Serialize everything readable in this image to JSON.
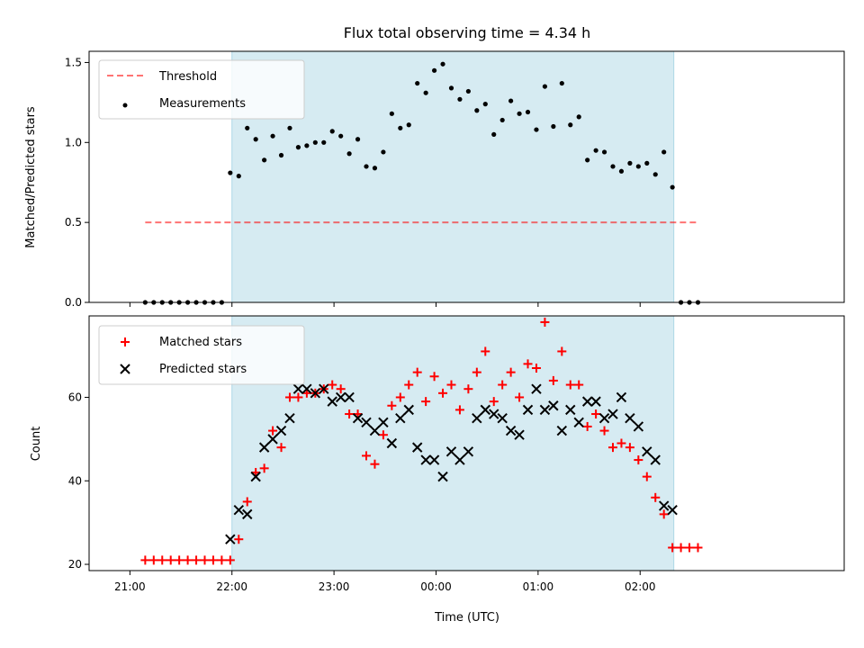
{
  "chart_data": {
    "title": "Flux total observing time = 4.34 h",
    "xlabel": "Time (UTC)",
    "x_tick_labels": [
      "21:00",
      "22:00",
      "23:00",
      "00:00",
      "01:00",
      "02:00"
    ],
    "x_tick_hours": [
      21,
      22,
      23,
      24,
      25,
      26
    ],
    "xlim_hours": [
      20.6,
      28.0
    ],
    "shaded_span_hours": [
      22.0,
      26.33
    ],
    "colors": {
      "span": "#add8e6",
      "threshold": "#ff0000",
      "measurements": "#000000",
      "matched": "#ff0000",
      "predicted": "#000000"
    },
    "panels": [
      {
        "type": "scatter",
        "ylabel": "Matched/Predicted stars",
        "ylim": [
          0,
          1.57
        ],
        "y_ticks": [
          0.0,
          0.5,
          1.0,
          1.5
        ],
        "y_tick_labels": [
          "0.0",
          "0.5",
          "1.0",
          "1.5"
        ],
        "legend_position": "upper-left",
        "threshold": {
          "name": "Threshold",
          "value": 0.5,
          "x_range_hours": [
            21.15,
            26.55
          ]
        },
        "measurements": {
          "name": "Measurements",
          "x_hours": [
            21.15,
            21.2333,
            21.3167,
            21.4,
            21.4833,
            21.5667,
            21.65,
            21.7333,
            21.8167,
            21.9,
            21.9833,
            22.0667,
            22.15,
            22.2333,
            22.3167,
            22.4,
            22.4833,
            22.5667,
            22.65,
            22.7333,
            22.8167,
            22.9,
            22.9833,
            23.0667,
            23.15,
            23.2333,
            23.3167,
            23.4,
            23.4833,
            23.5667,
            23.65,
            23.7333,
            23.8167,
            23.9,
            23.9833,
            24.0667,
            24.15,
            24.2333,
            24.3167,
            24.4,
            24.4833,
            24.5667,
            24.65,
            24.7333,
            24.8167,
            24.9,
            24.9833,
            25.0667,
            25.15,
            25.2333,
            25.3167,
            25.4,
            25.4833,
            25.5667,
            25.65,
            25.7333,
            25.8167,
            25.9,
            25.9833,
            26.0667,
            26.15,
            26.2333,
            26.3167,
            26.4,
            26.4833,
            26.5667
          ],
          "values": [
            0,
            0,
            0,
            0,
            0,
            0,
            0,
            0,
            0,
            0,
            0.81,
            0.79,
            1.09,
            1.02,
            0.89,
            1.04,
            0.92,
            1.09,
            0.97,
            0.98,
            1.0,
            1.0,
            1.07,
            1.04,
            0.93,
            1.02,
            0.85,
            0.84,
            0.94,
            1.18,
            1.09,
            1.11,
            1.37,
            1.31,
            1.45,
            1.49,
            1.34,
            1.27,
            1.32,
            1.2,
            1.24,
            1.05,
            1.14,
            1.26,
            1.18,
            1.19,
            1.08,
            1.35,
            1.1,
            1.37,
            1.11,
            1.16,
            0.89,
            0.95,
            0.94,
            0.85,
            0.82,
            0.87,
            0.85,
            0.87,
            0.8,
            0.94,
            0.72,
            0,
            0,
            0
          ]
        }
      },
      {
        "type": "scatter",
        "ylabel": "Count",
        "ylim": [
          18.5,
          79.5
        ],
        "y_ticks": [
          20,
          40,
          60
        ],
        "y_tick_labels": [
          "20",
          "40",
          "60"
        ],
        "legend_position": "upper-left",
        "series": [
          {
            "name": "Matched stars",
            "marker": "plus",
            "x_hours": [
              21.15,
              21.2333,
              21.3167,
              21.4,
              21.4833,
              21.5667,
              21.65,
              21.7333,
              21.8167,
              21.9,
              21.9833,
              22.0667,
              22.15,
              22.2333,
              22.3167,
              22.4,
              22.4833,
              22.5667,
              22.65,
              22.7333,
              22.8167,
              22.9,
              22.9833,
              23.0667,
              23.15,
              23.2333,
              23.3167,
              23.4,
              23.4833,
              23.5667,
              23.65,
              23.7333,
              23.8167,
              23.9,
              23.9833,
              24.0667,
              24.15,
              24.2333,
              24.3167,
              24.4,
              24.4833,
              24.5667,
              24.65,
              24.7333,
              24.8167,
              24.9,
              24.9833,
              25.0667,
              25.15,
              25.2333,
              25.3167,
              25.4,
              25.4833,
              25.5667,
              25.65,
              25.7333,
              25.8167,
              25.9,
              25.9833,
              26.0667,
              26.15,
              26.2333,
              26.3167,
              26.4,
              26.4833,
              26.5667
            ],
            "values": [
              21,
              21,
              21,
              21,
              21,
              21,
              21,
              21,
              21,
              21,
              21,
              26,
              35,
              42,
              43,
              52,
              48,
              60,
              60,
              61,
              61,
              62,
              63,
              62,
              56,
              56,
              46,
              44,
              51,
              58,
              60,
              63,
              66,
              59,
              65,
              61,
              63,
              57,
              62,
              66,
              71,
              59,
              63,
              66,
              60,
              68,
              67,
              78,
              64,
              71,
              63,
              63,
              53,
              56,
              52,
              48,
              49,
              48,
              45,
              41,
              36,
              32,
              24,
              24,
              24,
              24
            ]
          },
          {
            "name": "Predicted stars",
            "marker": "cross",
            "x_hours": [
              21.9833,
              22.0667,
              22.15,
              22.2333,
              22.3167,
              22.4,
              22.4833,
              22.5667,
              22.65,
              22.7333,
              22.8167,
              22.9,
              22.9833,
              23.0667,
              23.15,
              23.2333,
              23.3167,
              23.4,
              23.4833,
              23.5667,
              23.65,
              23.7333,
              23.8167,
              23.9,
              23.9833,
              24.0667,
              24.15,
              24.2333,
              24.3167,
              24.4,
              24.4833,
              24.5667,
              24.65,
              24.7333,
              24.8167,
              24.9,
              24.9833,
              25.0667,
              25.15,
              25.2333,
              25.3167,
              25.4,
              25.4833,
              25.5667,
              25.65,
              25.7333,
              25.8167,
              25.9,
              25.9833,
              26.0667,
              26.15,
              26.2333,
              26.3167
            ],
            "values": [
              26,
              33,
              32,
              41,
              48,
              50,
              52,
              55,
              62,
              62,
              61,
              62,
              59,
              60,
              60,
              55,
              54,
              52,
              54,
              49,
              55,
              57,
              48,
              45,
              45,
              41,
              47,
              45,
              47,
              55,
              57,
              56,
              55,
              52,
              51,
              57,
              62,
              57,
              58,
              52,
              57,
              54,
              59,
              59,
              55,
              56,
              60,
              55,
              53,
              47,
              45,
              34,
              33
            ]
          }
        ]
      }
    ]
  }
}
